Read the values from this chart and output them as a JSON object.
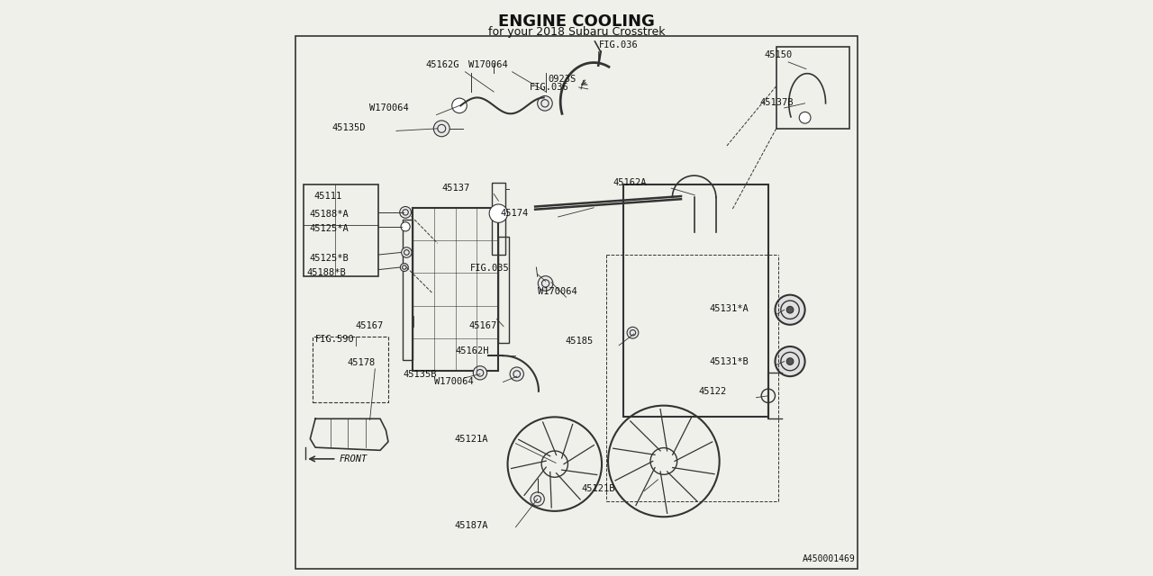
{
  "title": "ENGINE COOLING",
  "subtitle": "for your 2018 Subaru Crosstrek",
  "bg_color": "#f0f0eb",
  "line_color": "#333333",
  "text_color": "#111111",
  "diagram_id": "A450001469",
  "fig_width": 12.8,
  "fig_height": 6.4
}
